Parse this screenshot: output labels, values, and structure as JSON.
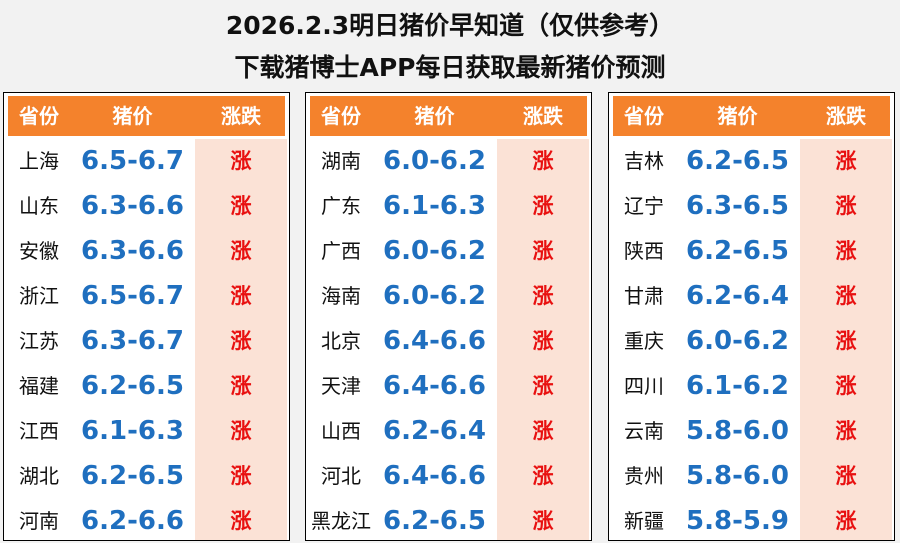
{
  "title": {
    "line1": "2026.2.3明日猪价早知道（仅供参考）",
    "line2": "下载猪博士APP每日获取最新猪价预测"
  },
  "headers": {
    "province": "省份",
    "price": "猪价",
    "change": "涨跌"
  },
  "panels": [
    {
      "rows": [
        {
          "province": "上海",
          "price": "6.5-6.7",
          "change": "涨"
        },
        {
          "province": "山东",
          "price": "6.3-6.6",
          "change": "涨"
        },
        {
          "province": "安徽",
          "price": "6.3-6.6",
          "change": "涨"
        },
        {
          "province": "浙江",
          "price": "6.5-6.7",
          "change": "涨"
        },
        {
          "province": "江苏",
          "price": "6.3-6.7",
          "change": "涨"
        },
        {
          "province": "福建",
          "price": "6.2-6.5",
          "change": "涨"
        },
        {
          "province": "江西",
          "price": "6.1-6.3",
          "change": "涨"
        },
        {
          "province": "湖北",
          "price": "6.2-6.5",
          "change": "涨"
        },
        {
          "province": "河南",
          "price": "6.2-6.6",
          "change": "涨"
        }
      ]
    },
    {
      "rows": [
        {
          "province": "湖南",
          "price": "6.0-6.2",
          "change": "涨"
        },
        {
          "province": "广东",
          "price": "6.1-6.3",
          "change": "涨"
        },
        {
          "province": "广西",
          "price": "6.0-6.2",
          "change": "涨"
        },
        {
          "province": "海南",
          "price": "6.0-6.2",
          "change": "涨"
        },
        {
          "province": "北京",
          "price": "6.4-6.6",
          "change": "涨"
        },
        {
          "province": "天津",
          "price": "6.4-6.6",
          "change": "涨"
        },
        {
          "province": "山西",
          "price": "6.2-6.4",
          "change": "涨"
        },
        {
          "province": "河北",
          "price": "6.4-6.6",
          "change": "涨"
        },
        {
          "province": "黑龙江",
          "price": "6.2-6.5",
          "change": "涨"
        }
      ]
    },
    {
      "rows": [
        {
          "province": "吉林",
          "price": "6.2-6.5",
          "change": "涨"
        },
        {
          "province": "辽宁",
          "price": "6.3-6.5",
          "change": "涨"
        },
        {
          "province": "陕西",
          "price": "6.2-6.5",
          "change": "涨"
        },
        {
          "province": "甘肃",
          "price": "6.2-6.4",
          "change": "涨"
        },
        {
          "province": "重庆",
          "price": "6.0-6.2",
          "change": "涨"
        },
        {
          "province": "四川",
          "price": "6.1-6.2",
          "change": "涨"
        },
        {
          "province": "云南",
          "price": "5.8-6.0",
          "change": "涨"
        },
        {
          "province": "贵州",
          "price": "5.8-6.0",
          "change": "涨"
        },
        {
          "province": "新疆",
          "price": "5.8-5.9",
          "change": "涨"
        }
      ]
    }
  ],
  "colors": {
    "header_bg": "#f4822c",
    "price_text": "#1f6fbf",
    "rise_text": "#e81010",
    "rise_bg": "#fbe2d6"
  }
}
